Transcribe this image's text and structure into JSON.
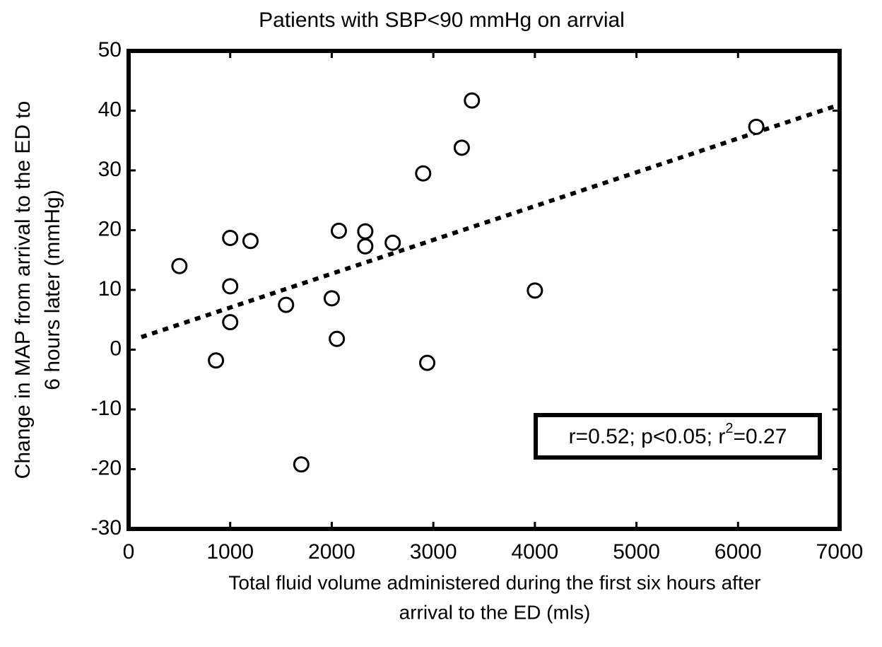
{
  "chart_data": {
    "type": "scatter",
    "title": "Patients with SBP<90 mmHg on arrvial",
    "x_label": [
      "Total fluid volume administered during the first six hours after",
      "arrival to the ED (mls)"
    ],
    "y_label": [
      "Change in MAP from arrival to the ED to",
      "6 hours later (mmHg)"
    ],
    "annotation": [
      "r=0.52; p<0.05; r",
      "2",
      "=0.27"
    ],
    "x": [
      500,
      1000,
      1000,
      1000,
      860,
      1200,
      1550,
      1700,
      2000,
      2070,
      2050,
      2330,
      2330,
      2600,
      2900,
      2940,
      3280,
      3380,
      4000,
      6180
    ],
    "y": [
      14,
      18.7,
      10.6,
      4.6,
      -1.8,
      18.2,
      7.5,
      -19.2,
      8.6,
      19.9,
      1.8,
      19.8,
      17.3,
      17.9,
      29.5,
      -2.2,
      33.8,
      41.7,
      9.9,
      37.3
    ],
    "trend_line": {
      "x": [
        125,
        7000
      ],
      "y": [
        2.1,
        41
      ]
    },
    "color": "#000000",
    "xlim": [
      0,
      7000
    ],
    "ylim": [
      -30,
      50
    ],
    "xticks": [
      0,
      1000,
      2000,
      3000,
      4000,
      5000,
      6000,
      7000
    ],
    "yticks": [
      -30,
      -20,
      -10,
      0,
      10,
      20,
      30,
      40,
      50
    ],
    "grid": false
  }
}
